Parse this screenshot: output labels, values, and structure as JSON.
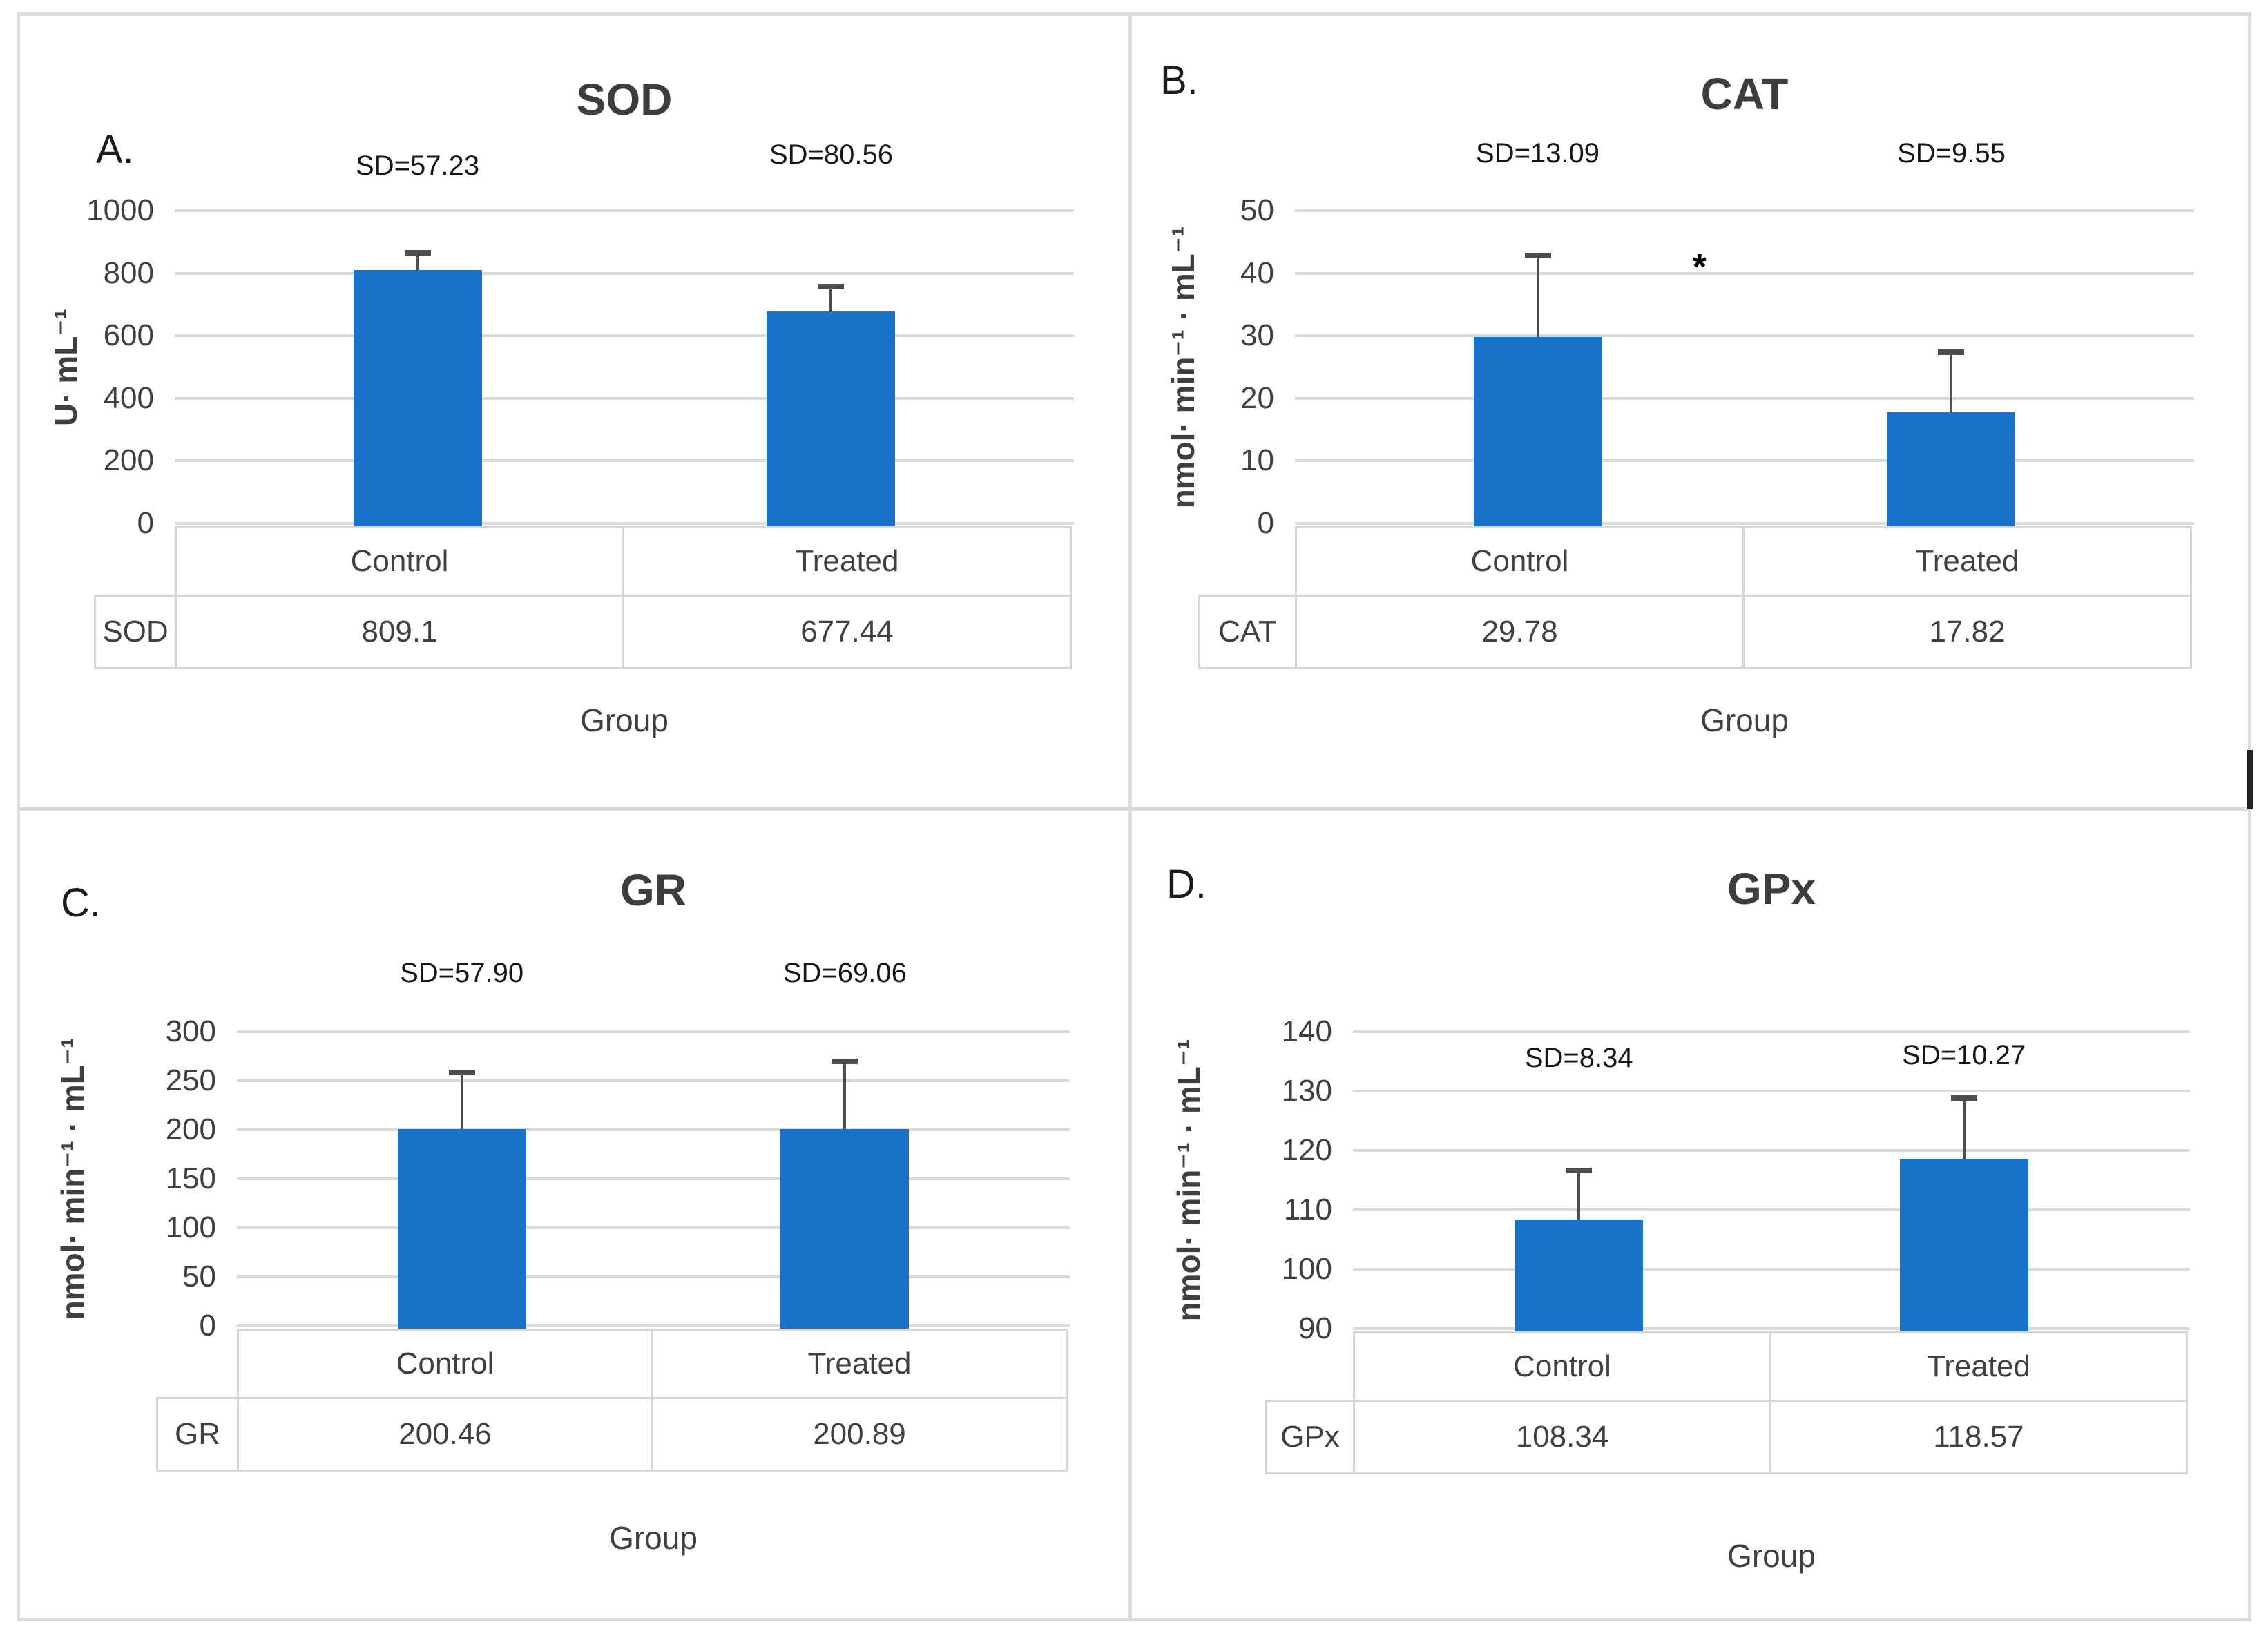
{
  "figure": {
    "x_axis_label": "Group",
    "group_categories": [
      "Control",
      "Treated"
    ],
    "bar_color": "#1874c8"
  },
  "chart_data": [
    {
      "type": "bar",
      "panel_label": "A.",
      "title": "SOD",
      "categories": [
        "Control",
        "Treated"
      ],
      "values": [
        809.1,
        677.44
      ],
      "sd_values": [
        57.23,
        80.56
      ],
      "sd_labels": [
        "SD=57.23",
        "SD=80.56"
      ],
      "ylabel": "U· mL⁻¹",
      "xlabel": "Group",
      "ylim": [
        0,
        1000
      ],
      "yticks": [
        0,
        200,
        400,
        600,
        800,
        1000
      ],
      "grid": true,
      "table": {
        "row_label": "SOD",
        "values": [
          "809.1",
          "677.44"
        ]
      },
      "sd_label_y": [
        1090,
        1125
      ]
    },
    {
      "type": "bar",
      "panel_label": "B.",
      "title": "CAT",
      "categories": [
        "Control",
        "Treated"
      ],
      "values": [
        29.78,
        17.82
      ],
      "sd_values": [
        13.09,
        9.55
      ],
      "sd_labels": [
        "SD=13.09",
        "SD=9.55"
      ],
      "ylabel": "nmol· min⁻¹ · mL⁻¹",
      "xlabel": "Group",
      "ylim": [
        0,
        50
      ],
      "yticks": [
        0,
        10,
        20,
        30,
        40,
        50
      ],
      "grid": true,
      "table": {
        "row_label": "CAT",
        "values": [
          "29.78",
          "17.82"
        ]
      },
      "sd_label_y": [
        56.5,
        56.5
      ],
      "annotation": {
        "text": "*",
        "x_frac": 0.45,
        "y": 41.4
      }
    },
    {
      "type": "bar",
      "panel_label": "C.",
      "title": "GR",
      "categories": [
        "Control",
        "Treated"
      ],
      "values": [
        200.46,
        200.89
      ],
      "sd_values": [
        57.9,
        69.06
      ],
      "sd_labels": [
        "SD=57.90",
        "SD=69.06"
      ],
      "ylabel": "nmol· min⁻¹ · mL⁻¹",
      "xlabel": "Group",
      "ylim": [
        0,
        300
      ],
      "yticks": [
        0,
        50,
        100,
        150,
        200,
        250,
        300
      ],
      "grid": true,
      "table": {
        "row_label": "GR",
        "values": [
          "200.46",
          "200.89"
        ]
      },
      "sd_label_y": [
        343,
        343
      ]
    },
    {
      "type": "bar",
      "panel_label": "D.",
      "title": "GPx",
      "categories": [
        "Control",
        "Treated"
      ],
      "values": [
        108.34,
        118.57
      ],
      "sd_values": [
        8.34,
        10.27
      ],
      "sd_labels": [
        "SD=8.34",
        "SD=10.27"
      ],
      "ylabel": "nmol· min⁻¹ · mL⁻¹",
      "xlabel": "Group",
      "ylim": [
        90,
        140
      ],
      "yticks": [
        90,
        100,
        110,
        120,
        130,
        140
      ],
      "grid": true,
      "table": {
        "row_label": "GPx",
        "values": [
          "108.34",
          "118.57"
        ]
      },
      "sd_label_y": [
        132.8,
        133.2
      ]
    }
  ]
}
